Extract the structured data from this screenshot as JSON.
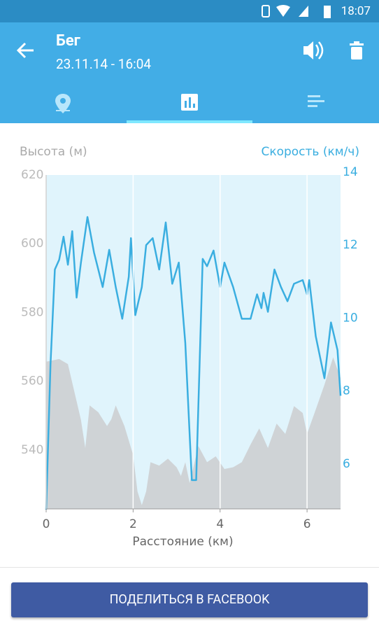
{
  "status_bar": {
    "time": "18:07"
  },
  "header": {
    "title": "Бег",
    "subtitle": "23.11.14 - 16:04"
  },
  "button": {
    "label": "ПОДЕЛИТЬСЯ В FACEBOOK"
  },
  "chart_data": {
    "type": "line",
    "xlabel": "Расстояние (км)",
    "ylabel": "Высота (м)",
    "y2label": "Скорость (км/ч)",
    "xlim": [
      0,
      6.77
    ],
    "xticks": [
      0,
      2,
      4,
      6
    ],
    "ylim": [
      522.9,
      620
    ],
    "yticks": [
      540,
      560,
      580,
      600,
      620
    ],
    "y2lim": [
      4.77,
      13.92
    ],
    "y2ticks": [
      6,
      8,
      10,
      12,
      14
    ],
    "grid": true,
    "background": "#e0f4fc",
    "series": [
      {
        "kind": "area",
        "color": "#cfd3d6",
        "x": [
          0,
          0.3,
          0.5,
          0.8,
          0.9,
          1.0,
          1.2,
          1.4,
          1.5,
          1.6,
          1.8,
          2.0,
          2.1,
          2.2,
          2.3,
          2.4,
          2.6,
          2.8,
          3.0,
          3.1,
          3.2,
          3.3,
          3.5,
          3.7,
          3.9,
          4.1,
          4.3,
          4.5,
          4.7,
          4.9,
          5.1,
          5.3,
          5.5,
          5.7,
          5.9,
          6.0,
          6.2,
          6.4,
          6.6,
          6.77
        ],
        "values": [
          565.7,
          566.5,
          565,
          548.8,
          540.6,
          553,
          551,
          547,
          549,
          553,
          547,
          538.6,
          528,
          524,
          528,
          536.5,
          535.5,
          537.5,
          535,
          532.5,
          536.5,
          530.4,
          541.2,
          536.5,
          538.2,
          534.5,
          535,
          536.5,
          541.6,
          546.3,
          540.6,
          547.7,
          544.7,
          552.8,
          550.8,
          544.7,
          551.8,
          559,
          567,
          561
        ]
      },
      {
        "kind": "line",
        "color": "#3aaee0",
        "axis": "y2",
        "x": [
          0,
          0.1,
          0.2,
          0.3,
          0.4,
          0.5,
          0.6,
          0.7,
          0.8,
          0.95,
          1.1,
          1.3,
          1.45,
          1.6,
          1.75,
          1.9,
          1.95,
          2.05,
          2.2,
          2.3,
          2.45,
          2.6,
          2.75,
          2.9,
          3.05,
          3.2,
          3.35,
          3.45,
          3.6,
          3.7,
          3.85,
          4.0,
          4.1,
          4.3,
          4.5,
          4.7,
          4.85,
          4.95,
          5.0,
          5.1,
          5.25,
          5.4,
          5.55,
          5.7,
          5.9,
          6.0,
          6.05,
          6.2,
          6.4,
          6.55,
          6.7,
          6.77
        ],
        "values": [
          4.75,
          8.73,
          11.33,
          11.6,
          12.23,
          11.46,
          12.38,
          10.56,
          11.52,
          12.77,
          11.8,
          10.85,
          11.87,
          10.85,
          9.98,
          11.13,
          12.19,
          10.08,
          10.85,
          12.0,
          12.19,
          11.33,
          12.62,
          10.94,
          11.52,
          9.31,
          5.56,
          5.56,
          11.62,
          11.42,
          11.85,
          10.85,
          11.52,
          10.85,
          9.98,
          9.98,
          10.65,
          10.27,
          10.69,
          10.17,
          11.33,
          10.85,
          10.46,
          10.94,
          11.04,
          10.65,
          11.04,
          9.5,
          8.35,
          9.88,
          9.12,
          7.87
        ]
      }
    ]
  }
}
